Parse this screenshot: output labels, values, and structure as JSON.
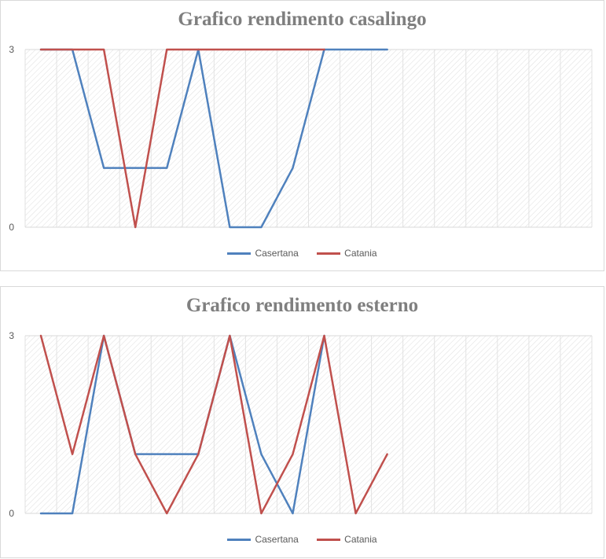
{
  "chart_data": [
    {
      "type": "line",
      "title": "Grafico rendimento casalingo",
      "ylim": [
        0,
        3
      ],
      "y_ticks": [
        "0",
        "3"
      ],
      "num_categories": 18,
      "grid": true,
      "legend_position": "bottom",
      "series": [
        {
          "name": "Casertana",
          "color": "#4f81bd",
          "values": [
            3,
            3,
            1,
            1,
            1,
            3,
            0,
            0,
            1,
            3,
            3,
            3
          ]
        },
        {
          "name": "Catania",
          "color": "#c0504d",
          "values": [
            3,
            3,
            3,
            0,
            3,
            3,
            3,
            3,
            3,
            3
          ]
        }
      ]
    },
    {
      "type": "line",
      "title": "Grafico rendimento esterno",
      "ylim": [
        0,
        3
      ],
      "y_ticks": [
        "0",
        "3"
      ],
      "num_categories": 18,
      "grid": true,
      "legend_position": "bottom",
      "series": [
        {
          "name": "Casertana",
          "color": "#4f81bd",
          "values": [
            0,
            0,
            3,
            1,
            1,
            1,
            3,
            1,
            0,
            3
          ]
        },
        {
          "name": "Catania",
          "color": "#c0504d",
          "values": [
            3,
            1,
            3,
            1,
            0,
            1,
            3,
            0,
            1,
            3,
            0,
            1
          ]
        }
      ]
    }
  ]
}
